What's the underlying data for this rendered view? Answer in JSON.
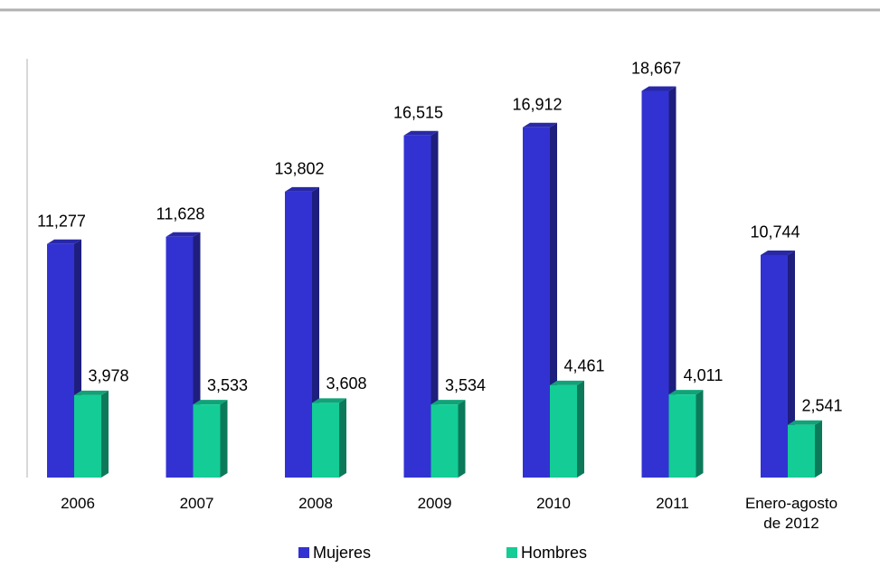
{
  "chart_data": {
    "type": "bar3d",
    "categories": [
      "2006",
      "2007",
      "2008",
      "2009",
      "2010",
      "2011",
      "Enero-agosto de 2012"
    ],
    "series": [
      {
        "name": "Mujeres",
        "color": "#3232d2",
        "values": [
          11277,
          11628,
          13802,
          16515,
          16912,
          18667,
          10744
        ],
        "value_labels": [
          "11,277",
          "11,628",
          "13,802",
          "16,515",
          "16,912",
          "18,667",
          "10,744"
        ]
      },
      {
        "name": "Hombres",
        "color": "#14cc96",
        "values": [
          3978,
          3533,
          3608,
          3534,
          4461,
          4011,
          2541
        ],
        "value_labels": [
          "3,978",
          "3,533",
          "3,608",
          "3,534",
          "4,461",
          "4,011",
          "2,541"
        ]
      }
    ],
    "ylim": [
      0,
      20000
    ]
  }
}
